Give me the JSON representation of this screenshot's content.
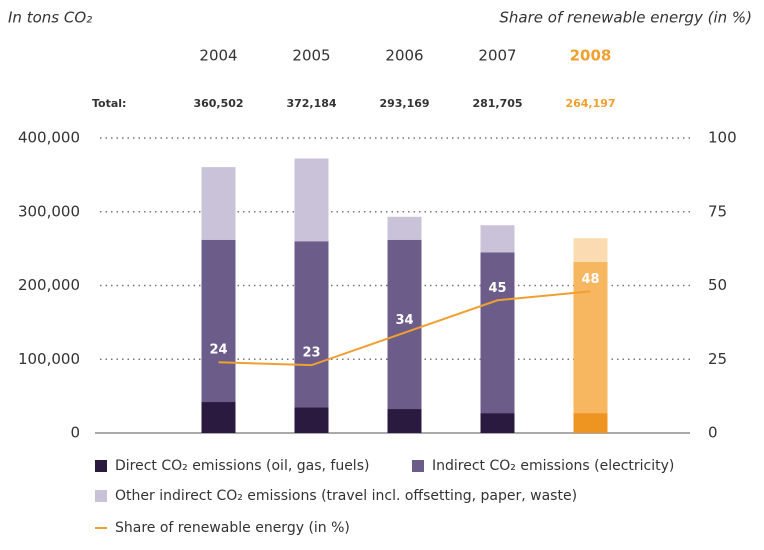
{
  "chart_data": {
    "type": "stacked_bar_line",
    "y_axis_label": "In tons CO₂",
    "y2_axis_label": "Share of renewable energy (in %)",
    "categories": [
      "2004",
      "2005",
      "2006",
      "2007",
      "2008"
    ],
    "category_colors": [
      "#333333",
      "#333333",
      "#333333",
      "#333333",
      "#f0a030"
    ],
    "total_label": "Total:",
    "totals": [
      360502,
      372184,
      293169,
      281705,
      264197
    ],
    "totals_labels": [
      "360,502",
      "372,184",
      "293,169",
      "281,705",
      "264,197"
    ],
    "series": [
      {
        "name": "Direct CO₂ emissions (oil, gas, fuels)",
        "color": "#2b1a3f",
        "colors": [
          "#2b1a3f",
          "#2b1a3f",
          "#2b1a3f",
          "#2b1a3f",
          "#ee9420"
        ],
        "values": [
          42000,
          35000,
          32500,
          27000,
          27000
        ]
      },
      {
        "name": "Indirect CO₂ emissions (electricity)",
        "color": "#6b5c8a",
        "colors": [
          "#6b5c8a",
          "#6b5c8a",
          "#6b5c8a",
          "#6b5c8a",
          "#f7b660"
        ],
        "values": [
          220000,
          225000,
          229500,
          218000,
          205000
        ]
      },
      {
        "name": "Other indirect CO₂ emissions (travel incl. offsetting, paper, waste)",
        "color": "#c9c2d9",
        "colors": [
          "#c9c2d9",
          "#c9c2d9",
          "#c9c2d9",
          "#c9c2d9",
          "#fbdcb2"
        ],
        "values": [
          98502,
          112184,
          31169,
          36705,
          32197
        ]
      },
      {
        "name": "Share of renewable energy (in %)",
        "color": "#f0a030",
        "axis": "y2",
        "kind": "line",
        "values": [
          24,
          23,
          34,
          45,
          48
        ]
      }
    ],
    "ylim": [
      0,
      400000
    ],
    "yticks": [
      0,
      {
        "value": 100000,
        "label": "100,000"
      },
      {
        "value": 200000,
        "label": "200,000"
      },
      {
        "value": 300000,
        "label": "300,000"
      },
      {
        "value": 400000,
        "label": "400,000"
      }
    ],
    "y2lim": [
      0,
      100
    ],
    "y2ticks": [
      0,
      25,
      50,
      75,
      100
    ],
    "grid": true
  }
}
